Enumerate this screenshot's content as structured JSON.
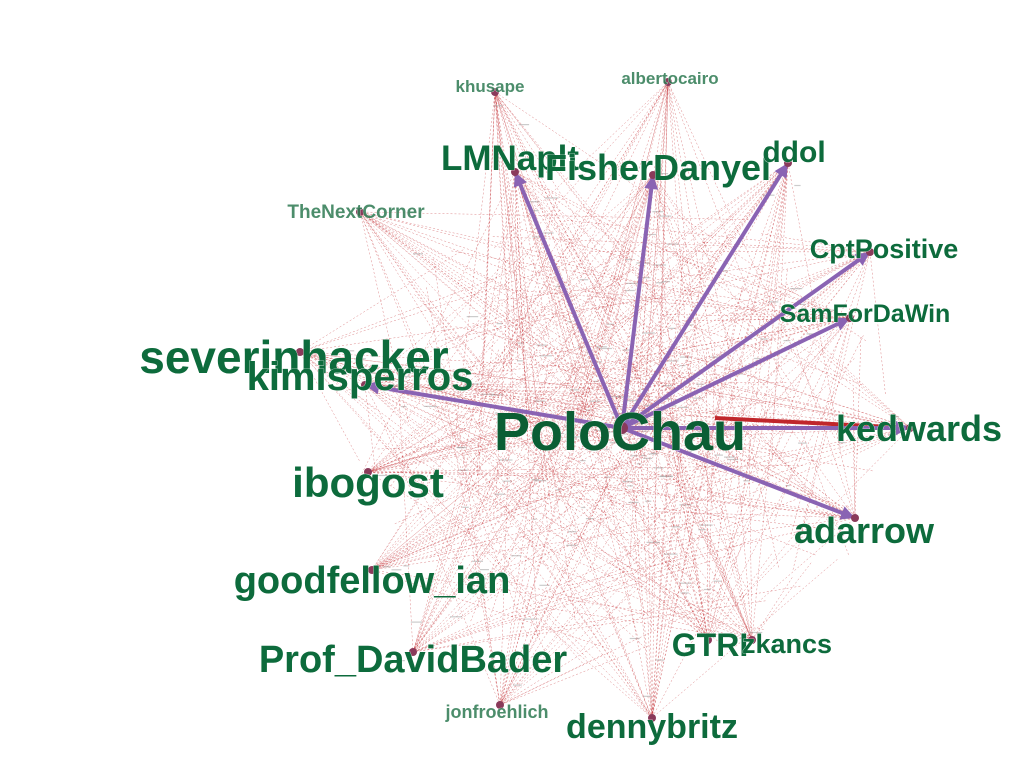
{
  "diagram": {
    "center": {
      "id": "PoloChau",
      "label": "PoloChau"
    },
    "colors": {
      "label": "#0d6b3c",
      "primary_edge": "#8a63b3",
      "secondary_edge": "#c0262b",
      "background": "#ffffff"
    },
    "nodes": [
      {
        "id": "khusape",
        "label": "khusape"
      },
      {
        "id": "albertocairo",
        "label": "albertocairo"
      },
      {
        "id": "LMNaplt",
        "label": "LMNaplt"
      },
      {
        "id": "FisherDanyel",
        "label": "FisherDanyel"
      },
      {
        "id": "ddol",
        "label": "ddol"
      },
      {
        "id": "TheNextCorner",
        "label": "TheNextCorner"
      },
      {
        "id": "CptPositive",
        "label": "CptPositive"
      },
      {
        "id": "SamForDaWin",
        "label": "SamForDaWin"
      },
      {
        "id": "severinhacker",
        "label": "severinhacker"
      },
      {
        "id": "kimisperros",
        "label": "kimisperros"
      },
      {
        "id": "kedwards",
        "label": "kedwards"
      },
      {
        "id": "ibogost",
        "label": "ibogost"
      },
      {
        "id": "adarrow",
        "label": "adarrow"
      },
      {
        "id": "goodfellow_ian",
        "label": "goodfellow_ian"
      },
      {
        "id": "Prof_DavidBader",
        "label": "Prof_DavidBader"
      },
      {
        "id": "GTRI",
        "label": "GTRI"
      },
      {
        "id": "zkancs",
        "label": "zkancs"
      },
      {
        "id": "jonfroehlich",
        "label": "jonfroehlich"
      },
      {
        "id": "dennybritz",
        "label": "dennybritz"
      }
    ],
    "primary_edges_from_center": [
      "LMNaplt",
      "FisherDanyel",
      "ddol",
      "CptPositive",
      "SamForDaWin",
      "kimisperros",
      "kedwards",
      "adarrow"
    ]
  }
}
